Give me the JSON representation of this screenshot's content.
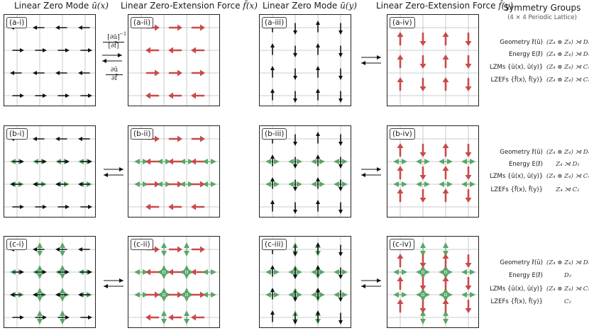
{
  "columns": [
    {
      "title": "Linear Zero Mode",
      "sym": "ū(x)"
    },
    {
      "title": "Linear Zero-Extension Force",
      "sym": "f̄(x)"
    },
    {
      "title": "Linear Zero Mode",
      "sym": "ū(y)"
    },
    {
      "title": "Linear Zero-Extension Force",
      "sym": "f̄(y)"
    }
  ],
  "panels": {
    "a1": "(a-i)",
    "a2": "(a-ii)",
    "a3": "(a-iii)",
    "a4": "(a-iv)",
    "b1": "(b-i)",
    "b2": "(b-ii)",
    "b3": "(b-iii)",
    "b4": "(b-iv)",
    "c1": "(c-i)",
    "c2": "(c-ii)",
    "c3": "(c-iii)",
    "c4": "(c-iv)"
  },
  "fractions": {
    "top_num": "[∂ū]",
    "top_den": "[∂f̄]",
    "top_exp": "−1",
    "bot_num": "∂ū",
    "bot_den": "∂f̄"
  },
  "symmetry": {
    "title": "Symmetry Groups",
    "subtitle": "(4 × 4 Periodic Lattice)",
    "rows": [
      [
        {
          "k": "Geometry ℓ̄(ū)",
          "v": "(Z₄ ⊗ Z₄) ⋊ D₄"
        },
        {
          "k": "Energy E(ℓ̄)",
          "v": "(Z₄ ⊗ Z₄) ⋊ D₄"
        },
        {
          "k": "LZMs {ū(x), ū(y)}",
          "v": "(Z₄ ⊗ Z₄) ⋊ C₄"
        },
        {
          "k": "LZEFs {f̄(x), f̄(y)}",
          "v": "(Z₄ ⊗ Z₄) ⋊ C₄"
        }
      ],
      [
        {
          "k": "Geometry ℓ̄(ū)",
          "v": "(Z₄ ⊗ Z₄) ⋊ D₄"
        },
        {
          "k": "Energy E(ℓ̄)",
          "v": "Z₄ ⋊ D₂"
        },
        {
          "k": "LZMs {ū(x), ū(y)}",
          "v": "(Z₄ ⊗ Z₄) ⋊ C₄"
        },
        {
          "k": "LZEFs {f̄(x), f̄(y)}",
          "v": "Z₄ ⋊ C₂"
        }
      ],
      [
        {
          "k": "Geometry ℓ̄(ū)",
          "v": "(Z₄ ⊗ Z₄) ⋊ D₄"
        },
        {
          "k": "Energy E(ℓ̄)",
          "v": "D₂"
        },
        {
          "k": "LZMs {ū(x), ū(y)}",
          "v": "(Z₄ ⊗ Z₄) ⋊ C₄"
        },
        {
          "k": "LZEFs {f̄(x), f̄(y)}",
          "v": "C₂"
        }
      ]
    ]
  },
  "colors": {
    "zero_mode": "#111111",
    "force": "#c94a4a",
    "green": "#5aa66a",
    "grid": "#bbbbbb"
  }
}
